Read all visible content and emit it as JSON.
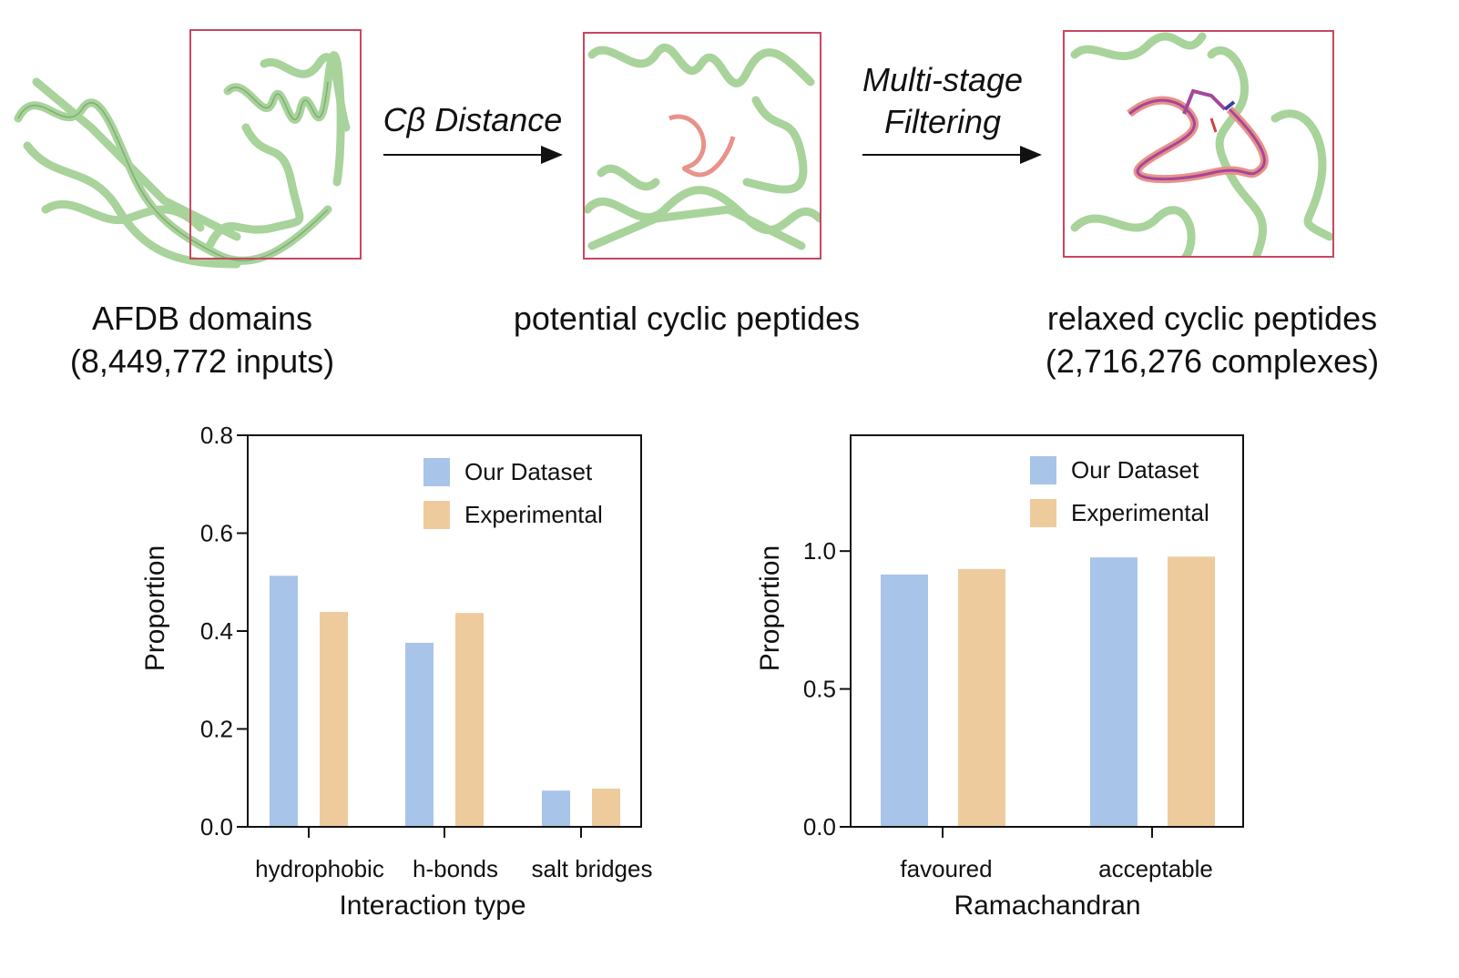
{
  "pipeline": {
    "stages": [
      {
        "label_line1": "AFDB domains",
        "label_line2": "(8,449,772 inputs)"
      },
      {
        "label_line1": "potential cyclic peptides",
        "label_line2": ""
      },
      {
        "label_line1": "relaxed cyclic peptides",
        "label_line2": "(2,716,276 complexes)"
      }
    ],
    "arrows": [
      {
        "label_line1": "Cβ Distance",
        "label_line2": ""
      },
      {
        "label_line1": "Multi-stage",
        "label_line2": "Filtering"
      }
    ],
    "colors": {
      "protein": "#a8d39b",
      "box": "#c8475f",
      "peptide": "#e8928a",
      "relaxed_peptide": "#a4479a"
    }
  },
  "chart_data": [
    {
      "type": "bar",
      "title": "",
      "xlabel": "Interaction type",
      "ylabel": "Proportion",
      "categories": [
        "hydrophobic",
        "h-bonds",
        "salt bridges"
      ],
      "ylim": [
        0,
        0.8
      ],
      "yticks": [
        "0.0",
        "0.2",
        "0.4",
        "0.6",
        "0.8"
      ],
      "ytick_values": [
        0,
        0.2,
        0.4,
        0.6,
        0.8
      ],
      "legend": "top-right",
      "grid": false,
      "series": [
        {
          "name": "Our Dataset",
          "color": "#a8c4e8",
          "values": [
            0.513,
            0.376,
            0.074
          ]
        },
        {
          "name": "Experimental",
          "color": "#edcb9d",
          "values": [
            0.439,
            0.437,
            0.078
          ]
        }
      ]
    },
    {
      "type": "bar",
      "title": "",
      "xlabel": "Ramachandran",
      "ylabel": "Proportion",
      "categories": [
        "favoured",
        "acceptable"
      ],
      "ylim": [
        0,
        1.42
      ],
      "yticks": [
        "0.0",
        "0.5",
        "1.0"
      ],
      "ytick_values": [
        0,
        0.5,
        1.0
      ],
      "legend": "top-right",
      "grid": false,
      "series": [
        {
          "name": "Our Dataset",
          "color": "#a8c4e8",
          "values": [
            0.915,
            0.977
          ]
        },
        {
          "name": "Experimental",
          "color": "#edcb9d",
          "values": [
            0.935,
            0.98
          ]
        }
      ]
    }
  ]
}
